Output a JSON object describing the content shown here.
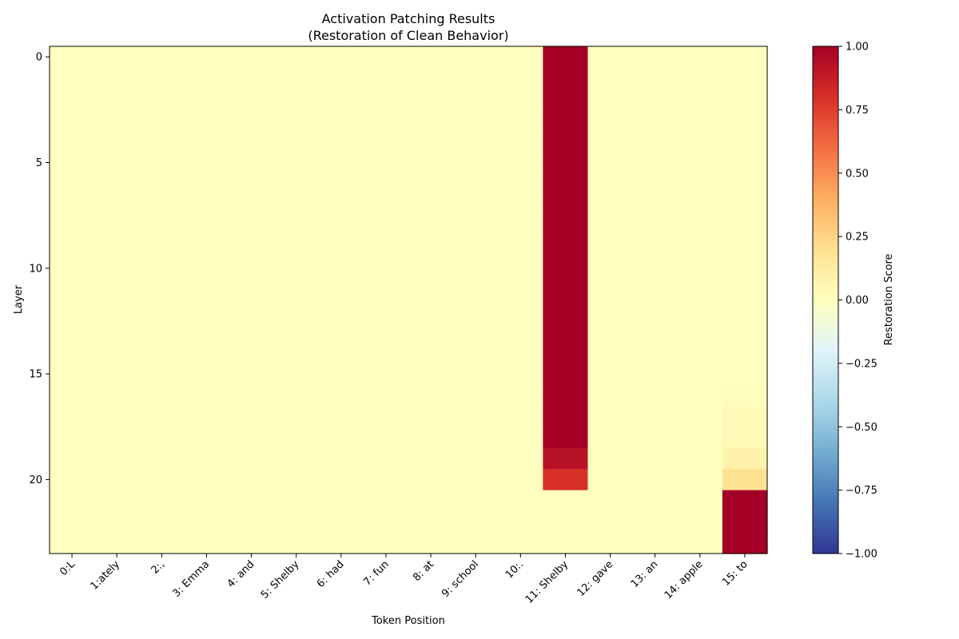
{
  "chart_data": {
    "type": "heatmap",
    "title": "Activation Patching Results",
    "subtitle": "(Restoration of Clean Behavior)",
    "xlabel": "Token Position",
    "ylabel": "Layer",
    "x_tick_labels": [
      "0:L",
      "1:ately",
      "2:,",
      "3: Emma",
      "4: and",
      "5: Shelby",
      "6: had",
      "7: fun",
      "8: at",
      "9: school",
      "10:.",
      "11: Shelby",
      "12: gave",
      "13: an",
      "14: apple",
      "15: to"
    ],
    "y_tick_values": [
      0,
      5,
      10,
      15,
      20
    ],
    "n_layers": 24,
    "colorbar": {
      "label": "Restoration Score",
      "range": [
        -1.0,
        1.0
      ],
      "ticks": [
        -1.0,
        -0.75,
        -0.5,
        -0.25,
        0.0,
        0.25,
        0.5,
        0.75,
        1.0
      ],
      "tick_labels": [
        "−1.00",
        "−0.75",
        "−0.50",
        "−0.25",
        "0.00",
        "0.25",
        "0.50",
        "0.75",
        "1.00"
      ],
      "colormap": "RdYlBu_r"
    },
    "default_value": 0.0,
    "columns": [
      {
        "token": "11: Shelby",
        "values": [
          1,
          1,
          1,
          1,
          1,
          1,
          1,
          1,
          1,
          1,
          1,
          1,
          1,
          1,
          1,
          1,
          1,
          1,
          1,
          0.93,
          0.8,
          0,
          0,
          0
        ]
      },
      {
        "token": "15: to",
        "values": [
          0,
          0,
          0,
          0,
          0,
          0,
          0,
          0,
          0,
          0,
          0,
          0,
          0,
          0,
          0,
          0,
          0.01,
          0.03,
          0.03,
          0.08,
          0.19,
          1,
          1,
          1
        ]
      }
    ]
  }
}
